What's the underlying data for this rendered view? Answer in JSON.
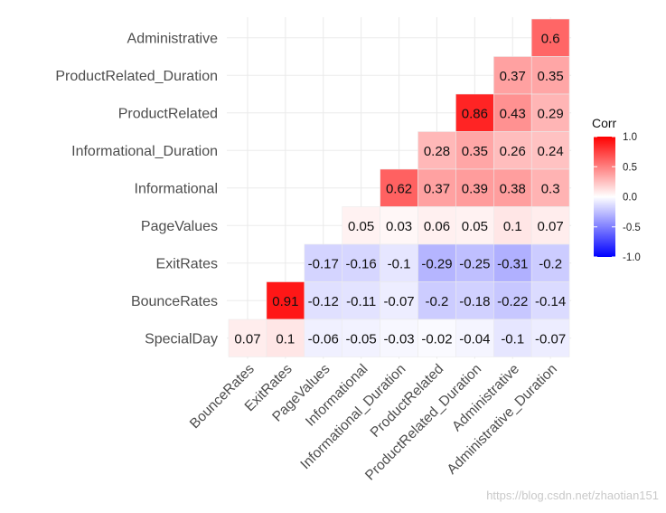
{
  "chart_data": {
    "type": "heatmap",
    "title": "",
    "xlabel": "",
    "ylabel": "",
    "rows": [
      "Administrative",
      "ProductRelated_Duration",
      "ProductRelated",
      "Informational_Duration",
      "Informational",
      "PageValues",
      "ExitRates",
      "BounceRates",
      "SpecialDay"
    ],
    "columns": [
      "BounceRates",
      "ExitRates",
      "PageValues",
      "Informational",
      "Informational_Duration",
      "ProductRelated",
      "ProductRelated_Duration",
      "Administrative",
      "Administrative_Duration"
    ],
    "values": [
      [
        null,
        null,
        null,
        null,
        null,
        null,
        null,
        null,
        0.6
      ],
      [
        null,
        null,
        null,
        null,
        null,
        null,
        null,
        0.37,
        0.35
      ],
      [
        null,
        null,
        null,
        null,
        null,
        null,
        0.86,
        0.43,
        0.29
      ],
      [
        null,
        null,
        null,
        null,
        null,
        0.28,
        0.35,
        0.26,
        0.24
      ],
      [
        null,
        null,
        null,
        null,
        0.62,
        0.37,
        0.39,
        0.38,
        0.3
      ],
      [
        null,
        null,
        null,
        0.05,
        0.03,
        0.06,
        0.05,
        0.1,
        0.07
      ],
      [
        null,
        null,
        -0.17,
        -0.16,
        -0.1,
        -0.29,
        -0.25,
        -0.31,
        -0.2
      ],
      [
        null,
        0.91,
        -0.12,
        -0.11,
        -0.07,
        -0.2,
        -0.18,
        -0.22,
        -0.14
      ],
      [
        0.07,
        0.1,
        -0.06,
        -0.05,
        -0.03,
        -0.02,
        -0.04,
        -0.1,
        -0.07
      ]
    ],
    "legend": {
      "title": "Corr",
      "ticks": [
        1.0,
        0.5,
        0.0,
        -0.5,
        -1.0
      ],
      "tick_labels": [
        "1.0",
        "0.5",
        "0.0",
        "-0.5",
        "-1.0"
      ],
      "range": [
        -1.0,
        1.0
      ],
      "position": "right"
    },
    "colors": {
      "high": "#ff0000",
      "mid": "#ffffff",
      "low": "#0000ff"
    }
  },
  "watermark": "https://blog.csdn.net/zhaotian151"
}
